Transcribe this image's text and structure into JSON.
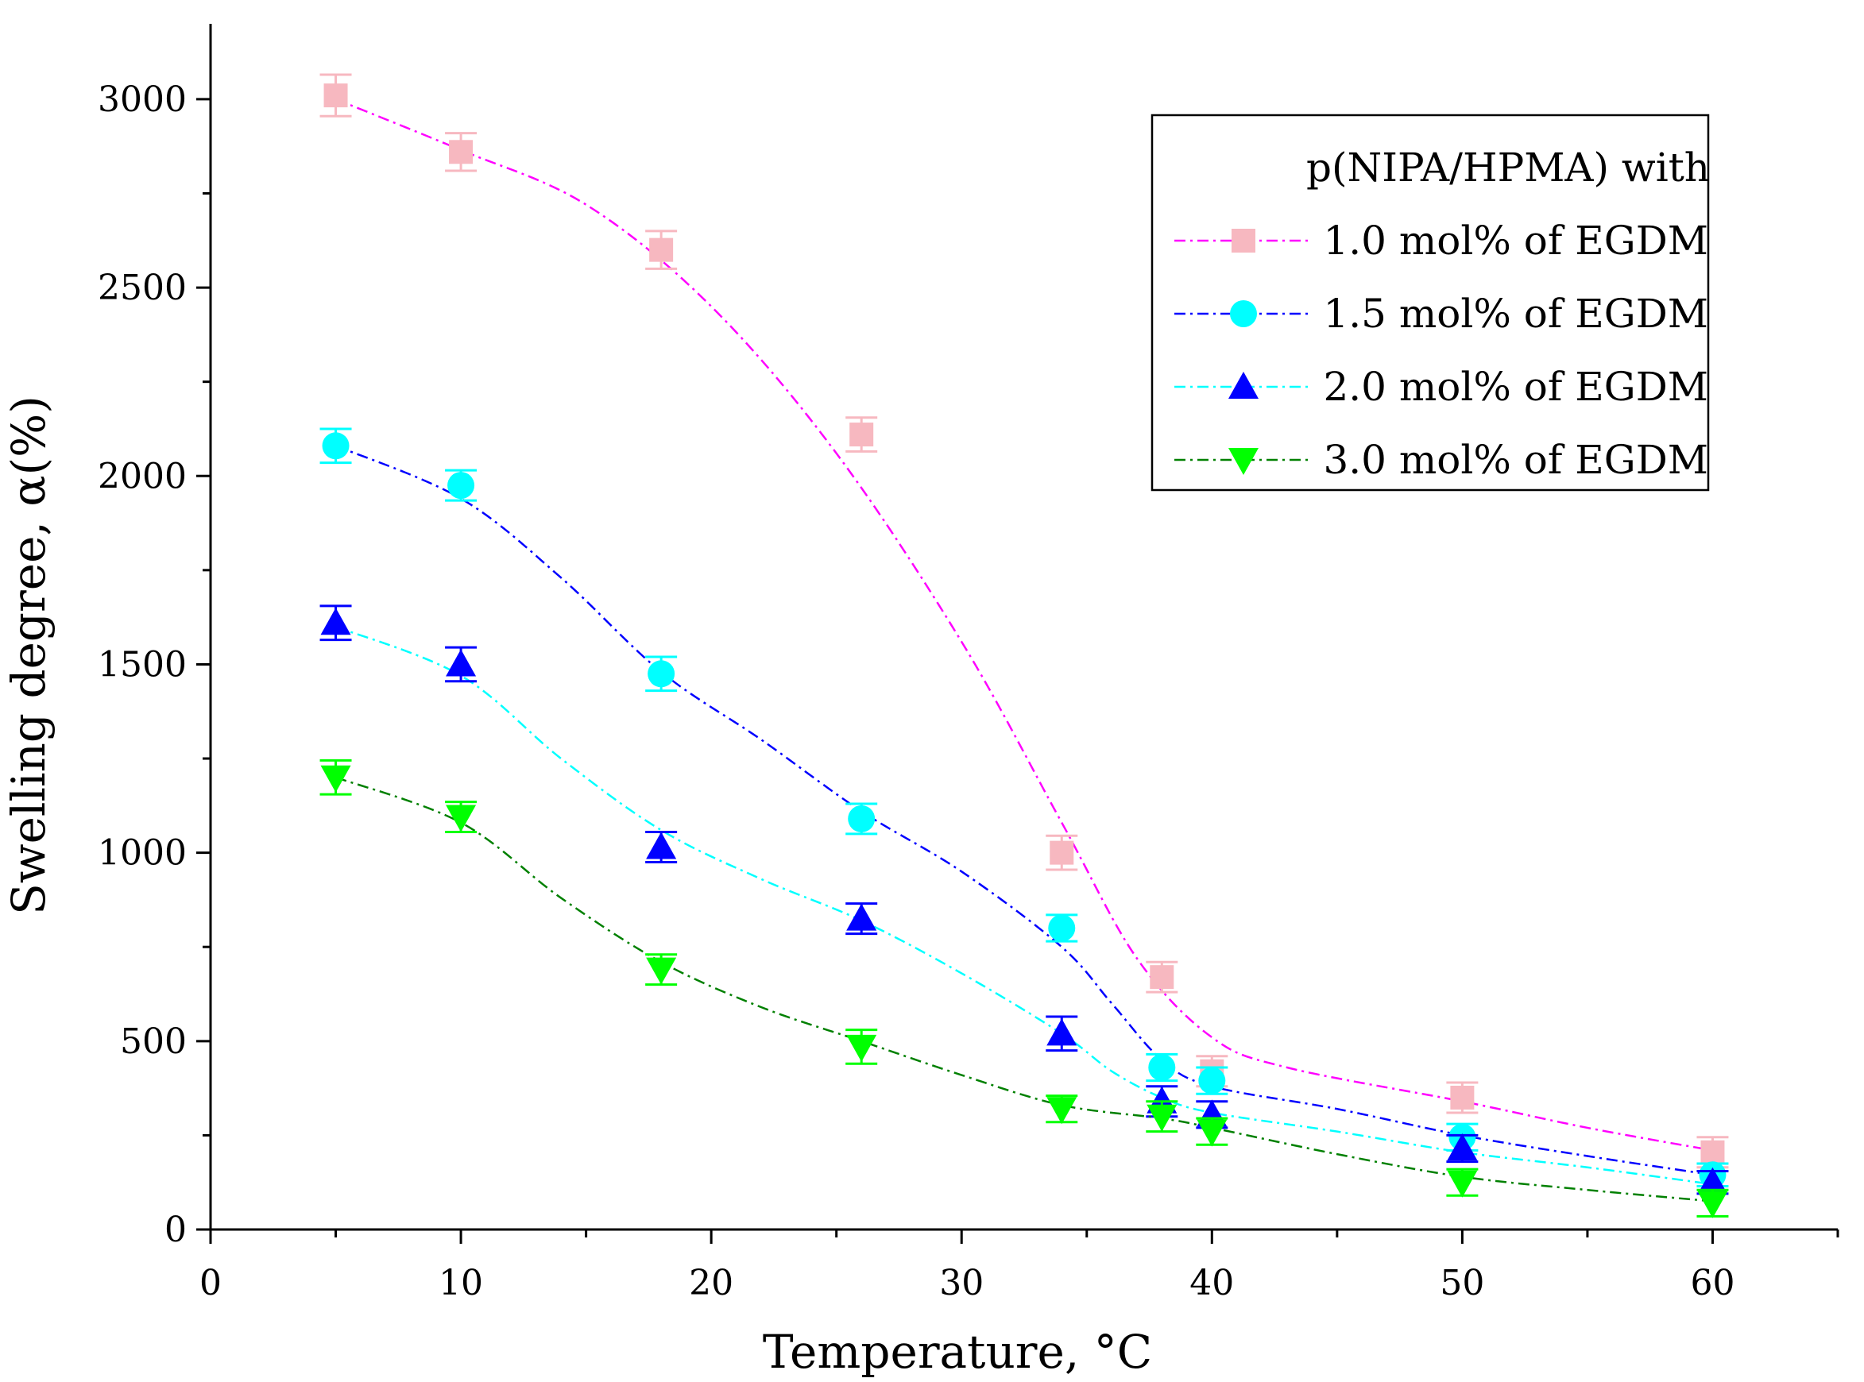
{
  "chart_data": {
    "type": "scatter",
    "xlabel": "Temperature, °C",
    "ylabel": "Swelling degree, α(%)",
    "xlim": [
      0,
      65
    ],
    "ylim": [
      0,
      3200
    ],
    "x_ticks": [
      0,
      10,
      20,
      30,
      40,
      50,
      60
    ],
    "y_ticks": [
      0,
      500,
      1000,
      1500,
      2000,
      2500,
      3000
    ],
    "grid": false,
    "legend": {
      "title": "p(NIPA/HPMA) with",
      "placement": "top-right"
    },
    "x": [
      5,
      10,
      18,
      26,
      34,
      38,
      40,
      50,
      60
    ],
    "series": [
      {
        "name": "1.0 mol% of EGDM",
        "marker": "square",
        "marker_color": "#f7b8c0",
        "line_color": "#ff00ff",
        "values": [
          3010,
          2860,
          2600,
          2110,
          1000,
          670,
          420,
          350,
          205
        ],
        "error": [
          55,
          50,
          50,
          45,
          45,
          40,
          40,
          40,
          40
        ],
        "fit": [
          [
            5,
            3000
          ],
          [
            10,
            2865
          ],
          [
            15,
            2720
          ],
          [
            20,
            2450
          ],
          [
            25,
            2060
          ],
          [
            30,
            1560
          ],
          [
            34,
            1080
          ],
          [
            37,
            720
          ],
          [
            40,
            510
          ],
          [
            43,
            430
          ],
          [
            50,
            340
          ],
          [
            55,
            270
          ],
          [
            60,
            210
          ]
        ]
      },
      {
        "name": "1.5 mol% of EGDM",
        "marker": "circle",
        "marker_color": "#00ffff",
        "line_color": "#0000ff",
        "values": [
          2080,
          1975,
          1475,
          1090,
          800,
          430,
          395,
          245,
          145
        ],
        "error": [
          45,
          40,
          45,
          40,
          35,
          35,
          35,
          35,
          30
        ],
        "fit": [
          [
            5,
            2080
          ],
          [
            10,
            1940
          ],
          [
            14,
            1730
          ],
          [
            18,
            1480
          ],
          [
            22,
            1300
          ],
          [
            26,
            1110
          ],
          [
            30,
            950
          ],
          [
            34,
            750
          ],
          [
            36,
            600
          ],
          [
            38,
            450
          ],
          [
            40,
            380
          ],
          [
            45,
            320
          ],
          [
            50,
            250
          ],
          [
            55,
            195
          ],
          [
            60,
            145
          ]
        ]
      },
      {
        "name": "2.0 mol% of EGDM",
        "marker": "triangle-up",
        "marker_color": "#0000ff",
        "line_color": "#00ffff",
        "values": [
          1610,
          1500,
          1015,
          825,
          520,
          340,
          305,
          215,
          125
        ],
        "error": [
          45,
          45,
          40,
          40,
          45,
          40,
          35,
          35,
          30
        ],
        "fit": [
          [
            5,
            1600
          ],
          [
            10,
            1470
          ],
          [
            14,
            1250
          ],
          [
            18,
            1060
          ],
          [
            22,
            930
          ],
          [
            26,
            820
          ],
          [
            30,
            680
          ],
          [
            34,
            520
          ],
          [
            36,
            420
          ],
          [
            38,
            350
          ],
          [
            40,
            310
          ],
          [
            45,
            260
          ],
          [
            50,
            205
          ],
          [
            55,
            165
          ],
          [
            60,
            120
          ]
        ]
      },
      {
        "name": "3.0 mol% of EGDM",
        "marker": "triangle-down",
        "marker_color": "#00ff00",
        "line_color": "#008000",
        "values": [
          1200,
          1095,
          690,
          485,
          320,
          300,
          260,
          125,
          70
        ],
        "error": [
          45,
          40,
          40,
          45,
          35,
          40,
          35,
          35,
          35
        ],
        "fit": [
          [
            5,
            1200
          ],
          [
            10,
            1080
          ],
          [
            14,
            880
          ],
          [
            18,
            710
          ],
          [
            22,
            590
          ],
          [
            26,
            500
          ],
          [
            30,
            410
          ],
          [
            34,
            330
          ],
          [
            38,
            295
          ],
          [
            40,
            270
          ],
          [
            45,
            200
          ],
          [
            50,
            140
          ],
          [
            55,
            105
          ],
          [
            60,
            75
          ]
        ]
      }
    ]
  }
}
